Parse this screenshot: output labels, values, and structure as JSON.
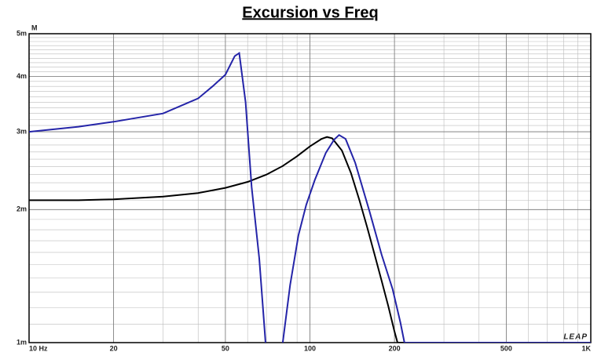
{
  "chart_data": {
    "type": "line",
    "title": "Excursion vs Freq",
    "y_unit": "M",
    "watermark": "LEAP",
    "log_x": true,
    "log_y": true,
    "grid": true,
    "minor_grid": true,
    "xlim": [
      10,
      1000
    ],
    "ylim": [
      0.001,
      0.005
    ],
    "xticks": [
      {
        "value": 10,
        "label": "10 Hz"
      },
      20,
      50,
      100,
      200,
      500,
      {
        "value": 1000,
        "label": "1K"
      }
    ],
    "yticks": [
      {
        "value": 0.001,
        "label": "1m"
      },
      {
        "value": 0.002,
        "label": "2m"
      },
      {
        "value": 0.003,
        "label": "3m"
      },
      {
        "value": 0.004,
        "label": "4m"
      },
      {
        "value": 0.005,
        "label": "5m"
      }
    ],
    "series": [
      {
        "color": "#000000",
        "x": [
          10,
          15,
          20,
          30,
          40,
          50,
          60,
          70,
          80,
          90,
          100,
          110,
          115,
          120,
          130,
          140,
          150,
          160,
          170,
          180,
          190,
          200,
          205,
          300,
          1000
        ],
        "values": [
          0.0021,
          0.0021,
          0.00211,
          0.00214,
          0.00218,
          0.00224,
          0.00231,
          0.0024,
          0.00251,
          0.00264,
          0.00278,
          0.00289,
          0.00292,
          0.0029,
          0.00272,
          0.00242,
          0.0021,
          0.00182,
          0.00158,
          0.00138,
          0.00121,
          0.00106,
          0.001,
          0.001,
          0.001
        ]
      },
      {
        "color": "#2424a8",
        "x": [
          10,
          15,
          20,
          30,
          40,
          45,
          50,
          54,
          56,
          59,
          62,
          66,
          69.5,
          75,
          80,
          85,
          91,
          97,
          104,
          114,
          122,
          127,
          134,
          145,
          163,
          180,
          197,
          210,
          217,
          300,
          1000
        ],
        "values": [
          0.003,
          0.00308,
          0.00316,
          0.0033,
          0.00357,
          0.0038,
          0.00404,
          0.00445,
          0.00452,
          0.0035,
          0.00225,
          0.00155,
          0.001,
          null,
          0.001,
          0.00135,
          0.00175,
          0.00205,
          0.00233,
          0.00269,
          0.00288,
          0.00295,
          0.00289,
          0.00255,
          0.00198,
          0.00158,
          0.00132,
          0.00111,
          0.001,
          0.001,
          0.001
        ]
      }
    ]
  }
}
